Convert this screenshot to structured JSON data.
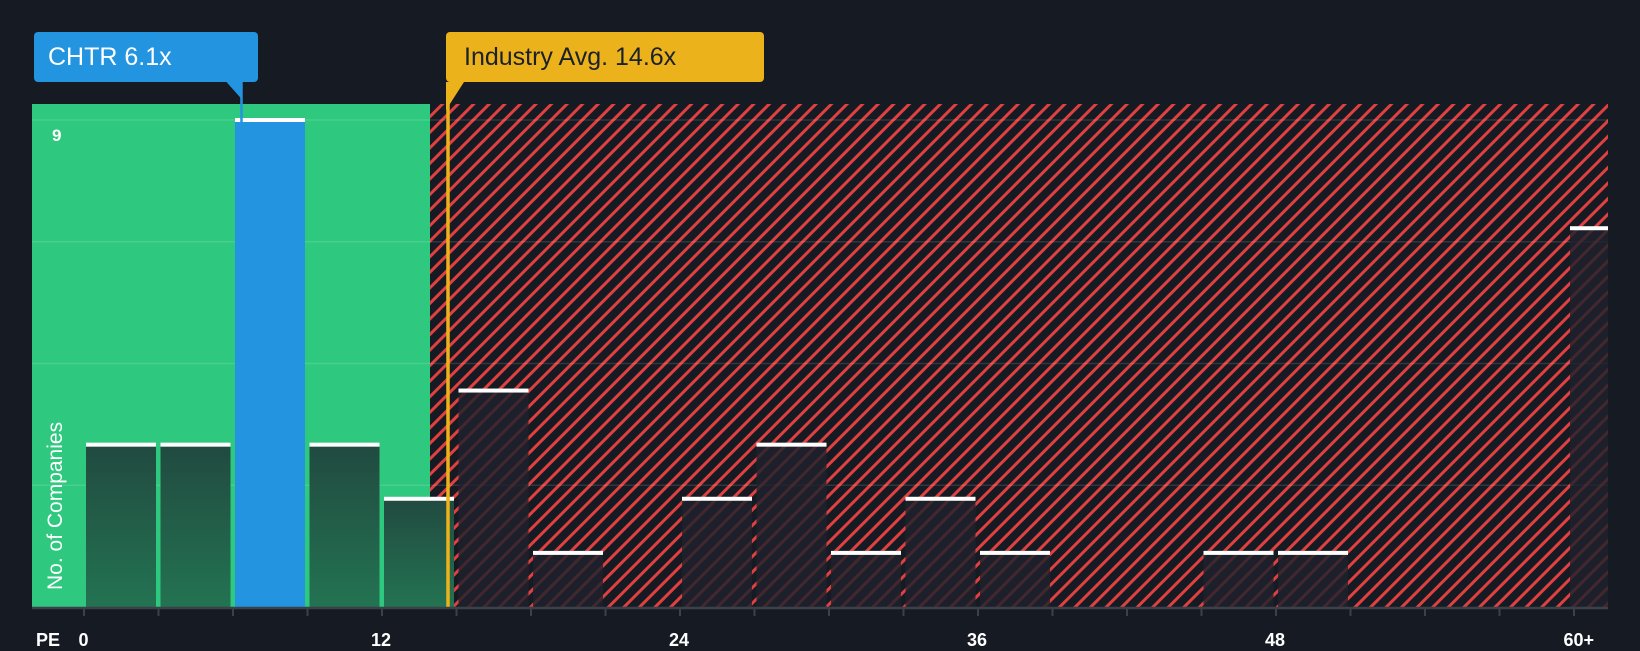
{
  "callouts": {
    "company": "CHTR 6.1x",
    "industry": "Industry Avg. 14.6x"
  },
  "axis": {
    "x_prefix": "PE",
    "y_label": "No. of Companies",
    "y_top_tick": "9",
    "x_ticks": [
      "0",
      "12",
      "24",
      "36",
      "48",
      "60+"
    ]
  },
  "colors": {
    "background": "#161b23",
    "undervalued_zone": "#2ec97f",
    "company_bar": "#2394df",
    "industry_marker": "#ecb21b",
    "overvalued_hatch": "#e0403f"
  },
  "chart_data": {
    "type": "bar",
    "title": "PE distribution — CHTR vs Industry",
    "xlabel": "PE",
    "ylabel": "No. of Companies",
    "ylim": [
      0,
      9
    ],
    "bin_width": 3,
    "categories": [
      "0-3",
      "3-6",
      "6-9",
      "9-12",
      "12-15",
      "15-18",
      "18-21",
      "21-24",
      "24-27",
      "27-30",
      "30-33",
      "33-36",
      "36-39",
      "39-42",
      "42-45",
      "45-48",
      "48-51",
      "51-54",
      "54-57",
      "57-60",
      "60+"
    ],
    "values": [
      3,
      3,
      9,
      3,
      2,
      4,
      1,
      0,
      2,
      3,
      1,
      2,
      1,
      0,
      0,
      1,
      1,
      0,
      0,
      0,
      7
    ],
    "highlight": {
      "category": "6-9",
      "label": "CHTR 6.1x",
      "value": 6.1
    },
    "reference_line": {
      "label": "Industry Avg. 14.6x",
      "value": 14.6
    },
    "x_tick_labels": [
      "0",
      "12",
      "24",
      "36",
      "48",
      "60+"
    ],
    "grid": true
  }
}
